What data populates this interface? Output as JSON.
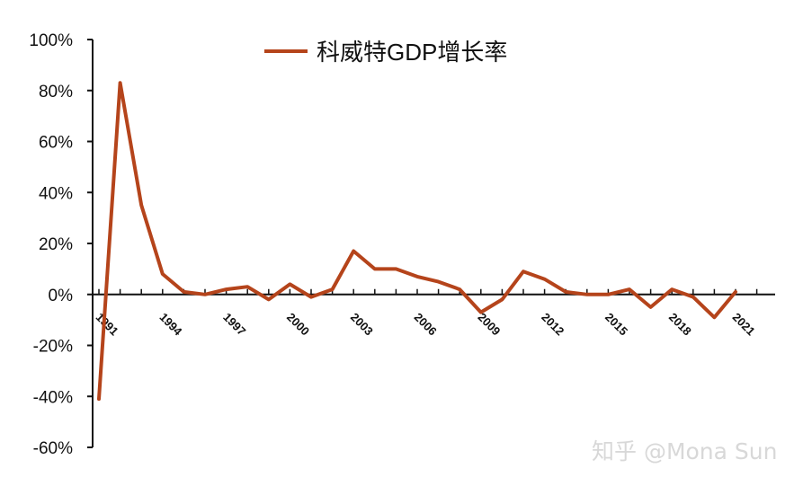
{
  "chart_data": {
    "type": "line",
    "title": "",
    "xlabel": "",
    "ylabel": "",
    "ylim": [
      -60,
      100
    ],
    "y_ticks": [
      100,
      80,
      60,
      40,
      20,
      0,
      -20,
      -40,
      -60
    ],
    "y_tick_labels": [
      "100%",
      "80%",
      "60%",
      "40%",
      "20%",
      "0%",
      "-20%",
      "-40%",
      "-60%"
    ],
    "x_tick_labels": [
      {
        "year": 1991,
        "label": "1991"
      },
      {
        "year": 1994,
        "label": "1994"
      },
      {
        "year": 1997,
        "label": "1997"
      },
      {
        "year": 2000,
        "label": "2000"
      },
      {
        "year": 2003,
        "label": "2003"
      },
      {
        "year": 2006,
        "label": "2006"
      },
      {
        "year": 2009,
        "label": "2009"
      },
      {
        "year": 2012,
        "label": "2012"
      },
      {
        "year": 2015,
        "label": "2015"
      },
      {
        "year": 2018,
        "label": "2018"
      },
      {
        "year": 2021,
        "label": "2021"
      }
    ],
    "grid": false,
    "legend": "top-center",
    "series": [
      {
        "name": "科威特GDP增长率",
        "color": "#B5441B",
        "x": [
          1991,
          1992,
          1993,
          1994,
          1995,
          1996,
          1997,
          1998,
          1999,
          2000,
          2001,
          2002,
          2003,
          2004,
          2005,
          2006,
          2007,
          2008,
          2009,
          2010,
          2011,
          2012,
          2013,
          2014,
          2015,
          2016,
          2017,
          2018,
          2019,
          2020,
          2021
        ],
        "values": [
          -41,
          83,
          35,
          8,
          1,
          0,
          2,
          3,
          -2,
          4,
          -1,
          2,
          17,
          10,
          10,
          7,
          5,
          2,
          -7,
          -2,
          9,
          6,
          1,
          0,
          0,
          2,
          -5,
          2,
          -1,
          -9,
          1
        ]
      }
    ]
  },
  "watermark": "知乎 @Mona Sun"
}
